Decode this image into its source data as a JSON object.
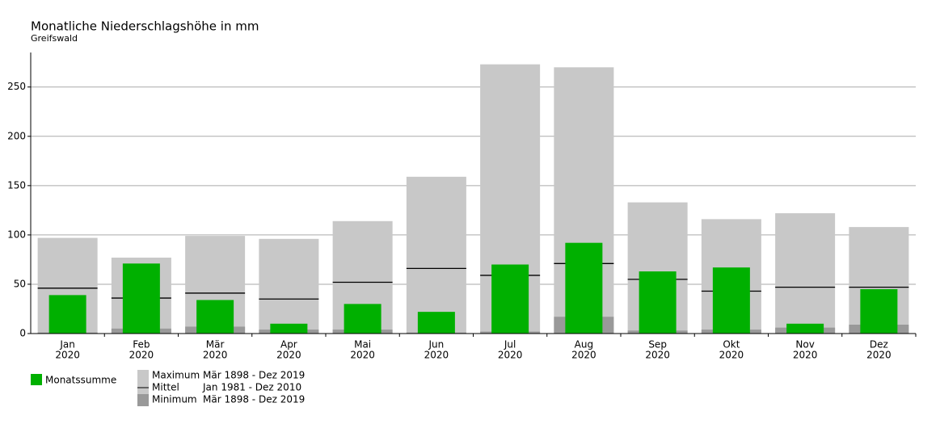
{
  "chart_data": {
    "type": "bar",
    "title": "Monatliche Niederschlagshöhe in mm",
    "subtitle": "Greifswald",
    "categories": [
      "Jan",
      "Feb",
      "Mär",
      "Apr",
      "Mai",
      "Jun",
      "Jul",
      "Aug",
      "Sep",
      "Okt",
      "Nov",
      "Dez"
    ],
    "category_years": [
      "2020",
      "2020",
      "2020",
      "2020",
      "2020",
      "2020",
      "2020",
      "2020",
      "2020",
      "2020",
      "2020",
      "2020"
    ],
    "ylim": [
      0,
      285
    ],
    "yticks": [
      0,
      50,
      100,
      150,
      200,
      250
    ],
    "grid": true,
    "series": [
      {
        "name": "Maximum",
        "period": "Mär 1898 - Dez 2019",
        "mark": "wide-bar",
        "color": "#c8c8c8",
        "values": [
          97,
          77,
          99,
          96,
          114,
          159,
          273,
          270,
          133,
          116,
          122,
          108
        ]
      },
      {
        "name": "Mittel",
        "period": "Jan 1981 - Dez 2010",
        "mark": "level",
        "color": "#000000",
        "values": [
          46,
          36,
          41,
          35,
          52,
          66,
          59,
          71,
          55,
          43,
          47,
          47
        ]
      },
      {
        "name": "Minimum",
        "period": "Mär 1898 - Dez 2019",
        "mark": "wide-bar",
        "color": "#999999",
        "values": [
          1,
          5,
          7,
          4,
          4,
          1,
          2,
          17,
          3,
          4,
          6,
          9
        ]
      },
      {
        "name": "Monatssumme",
        "mark": "bar",
        "color": "#00b000",
        "values": [
          39,
          71,
          34,
          10,
          30,
          22,
          70,
          92,
          63,
          67,
          10,
          45
        ]
      }
    ]
  }
}
